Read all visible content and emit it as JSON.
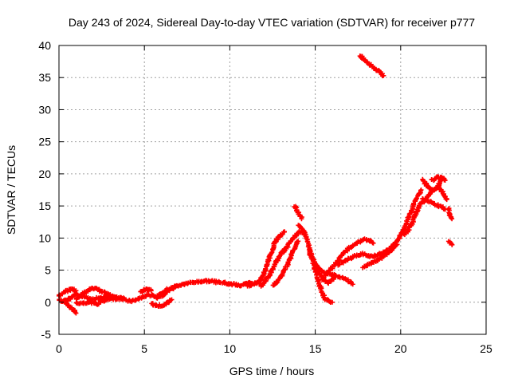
{
  "chart_data": {
    "type": "scatter",
    "title": "Day 243 of 2024, Sidereal Day-to-day VTEC variation (SDTVAR) for receiver p777",
    "xlabel": "GPS time / hours",
    "ylabel": "SDTVAR / TECUs",
    "xlim": [
      0,
      25
    ],
    "ylim": [
      -5,
      40
    ],
    "xticks": [
      0,
      5,
      10,
      15,
      20,
      25
    ],
    "yticks": [
      -5,
      0,
      5,
      10,
      15,
      20,
      25,
      30,
      35,
      40
    ],
    "grid": true,
    "marker": "plus",
    "color": "#ff0000",
    "series": [
      {
        "name": "SDTVAR",
        "segments": [
          {
            "x": [
              0.0,
              0.3,
              0.6,
              0.9,
              1.0
            ],
            "y": [
              1.0,
              1.5,
              2.0,
              2.0,
              1.8
            ]
          },
          {
            "x": [
              0.3,
              0.5,
              0.7,
              0.9,
              1.0
            ],
            "y": [
              0.2,
              -0.4,
              -0.9,
              -1.3,
              -1.7
            ]
          },
          {
            "x": [
              0.0,
              0.2,
              0.5,
              0.8,
              1.0,
              1.3,
              1.6,
              1.9,
              2.2,
              2.5,
              2.8,
              3.1,
              3.4,
              3.7,
              4.0,
              4.3,
              4.6,
              4.9,
              5.2,
              5.5,
              5.8,
              6.1,
              6.4,
              6.7,
              7.0,
              7.3,
              7.6,
              7.9,
              8.2,
              8.5,
              8.8,
              9.1,
              9.4,
              9.7,
              10.0,
              10.3,
              10.6,
              10.9,
              11.2,
              11.5,
              11.8
            ],
            "y": [
              0.5,
              0.2,
              0.3,
              0.8,
              1.2,
              1.0,
              0.8,
              0.5,
              0.6,
              0.7,
              0.8,
              0.9,
              0.7,
              0.6,
              0.3,
              0.2,
              0.5,
              0.8,
              1.2,
              1.0,
              0.6,
              1.2,
              1.8,
              2.2,
              2.6,
              2.8,
              3.0,
              3.1,
              3.2,
              3.3,
              3.3,
              3.2,
              3.1,
              3.0,
              2.8,
              2.8,
              2.6,
              2.8,
              3.0,
              2.9,
              3.0
            ]
          },
          {
            "x": [
              1.0,
              1.4,
              1.8,
              2.1,
              2.4,
              2.7,
              3.0
            ],
            "y": [
              0.6,
              1.3,
              2.0,
              2.2,
              1.8,
              1.4,
              1.2
            ]
          },
          {
            "x": [
              1.0,
              1.4,
              1.8,
              2.2,
              2.6,
              3.0,
              3.4,
              3.8
            ],
            "y": [
              0.0,
              -0.2,
              0.0,
              -0.3,
              0.2,
              0.5,
              0.6,
              0.5
            ]
          },
          {
            "x": [
              4.8,
              5.0,
              5.2,
              5.4
            ],
            "y": [
              1.6,
              1.9,
              2.1,
              1.8
            ]
          },
          {
            "x": [
              5.4,
              5.6,
              5.8,
              6.0,
              6.2,
              6.4,
              6.6
            ],
            "y": [
              -0.2,
              -0.4,
              -0.6,
              -0.5,
              -0.3,
              0.0,
              0.4
            ]
          },
          {
            "x": [
              5.8,
              6.0,
              6.3,
              6.6,
              6.9
            ],
            "y": [
              1.0,
              1.4,
              1.9,
              2.3,
              2.6
            ]
          },
          {
            "x": [
              11.0,
              11.4,
              11.8,
              12.0,
              12.2,
              12.4,
              12.6,
              12.8,
              13.0,
              13.2
            ],
            "y": [
              2.5,
              2.8,
              3.5,
              4.5,
              6.0,
              7.5,
              9.0,
              10.0,
              10.5,
              11.0
            ]
          },
          {
            "x": [
              11.8,
              12.0,
              12.2,
              12.4,
              12.6,
              12.8,
              13.0,
              13.2,
              13.4,
              13.6,
              13.8,
              14.0,
              14.2,
              14.4
            ],
            "y": [
              2.5,
              3.0,
              3.8,
              4.6,
              5.6,
              6.6,
              7.5,
              8.2,
              8.8,
              9.6,
              10.2,
              10.8,
              11.0,
              10.8
            ]
          },
          {
            "x": [
              12.5,
              12.8,
              13.1,
              13.4,
              13.7,
              14.0
            ],
            "y": [
              2.5,
              3.2,
              4.5,
              6.0,
              8.0,
              9.5
            ]
          },
          {
            "x": [
              13.8,
              13.9,
              14.0,
              14.1,
              14.2
            ],
            "y": [
              15.0,
              14.6,
              14.0,
              13.5,
              13.0
            ]
          },
          {
            "x": [
              14.0,
              14.2,
              14.4,
              14.6,
              14.8,
              15.0,
              15.2,
              15.4,
              15.6,
              15.8,
              16.0
            ],
            "y": [
              12.0,
              11.5,
              10.5,
              9.0,
              7.0,
              5.0,
              3.0,
              1.5,
              0.5,
              0.2,
              0.0
            ]
          },
          {
            "x": [
              14.6,
              14.8,
              15.0,
              15.2,
              15.4,
              15.6,
              15.8,
              16.0,
              16.2
            ],
            "y": [
              8.0,
              7.0,
              6.0,
              4.8,
              3.8,
              3.2,
              3.0,
              3.5,
              4.2
            ]
          },
          {
            "x": [
              15.0,
              15.2,
              15.4,
              15.6,
              15.8,
              16.0,
              16.3,
              16.6,
              16.9,
              17.2
            ],
            "y": [
              6.0,
              5.3,
              4.8,
              4.6,
              4.5,
              4.3,
              4.0,
              3.8,
              3.4,
              2.8
            ]
          },
          {
            "x": [
              15.4,
              15.8,
              16.2,
              16.6,
              17.0,
              17.4,
              17.8,
              18.0,
              18.2,
              18.4
            ],
            "y": [
              3.5,
              4.8,
              6.0,
              7.5,
              8.5,
              9.2,
              9.7,
              9.8,
              9.6,
              9.2
            ]
          },
          {
            "x": [
              16.2,
              16.6,
              17.0,
              17.4,
              17.8,
              18.2,
              18.6,
              19.0,
              19.4,
              19.8,
              20.0
            ],
            "y": [
              5.8,
              6.2,
              6.8,
              7.3,
              7.5,
              7.2,
              7.3,
              7.8,
              8.5,
              9.5,
              10.5
            ]
          },
          {
            "x": [
              17.8,
              18.2,
              18.6,
              19.0,
              19.4,
              19.8
            ],
            "y": [
              5.5,
              6.0,
              6.5,
              7.2,
              8.0,
              9.0
            ]
          },
          {
            "x": [
              17.6,
              17.9,
              18.2,
              18.5,
              18.8,
              19.0
            ],
            "y": [
              38.5,
              37.7,
              37.0,
              36.4,
              35.8,
              35.3
            ]
          },
          {
            "x": [
              20.0,
              20.2,
              20.4,
              20.6,
              20.8,
              21.0,
              21.2
            ],
            "y": [
              10.5,
              11.5,
              12.8,
              14.0,
              15.5,
              16.5,
              17.5
            ]
          },
          {
            "x": [
              20.2,
              20.4,
              20.6,
              20.8,
              21.0,
              21.2
            ],
            "y": [
              10.5,
              11.0,
              12.0,
              13.2,
              14.5,
              15.5
            ]
          },
          {
            "x": [
              21.3,
              21.6,
              21.9,
              22.2,
              22.4,
              22.6
            ],
            "y": [
              19.0,
              18.0,
              17.5,
              18.0,
              19.5,
              19.0
            ]
          },
          {
            "x": [
              21.3,
              21.6,
              21.9,
              22.2,
              22.5,
              22.7
            ],
            "y": [
              15.5,
              16.5,
              17.5,
              18.0,
              17.0,
              16.0
            ]
          },
          {
            "x": [
              21.3,
              21.6,
              22.0,
              22.4,
              22.6
            ],
            "y": [
              16.2,
              15.8,
              15.3,
              14.8,
              14.5
            ]
          },
          {
            "x": [
              21.8,
              22.0,
              22.2,
              22.4,
              22.6
            ],
            "y": [
              19.0,
              19.3,
              19.6,
              19.4,
              19.0
            ]
          },
          {
            "x": [
              22.8,
              22.9,
              23.0
            ],
            "y": [
              14.5,
              13.5,
              13.0
            ]
          },
          {
            "x": [
              22.8,
              22.9,
              23.0
            ],
            "y": [
              9.5,
              9.2,
              9.0
            ]
          }
        ]
      }
    ]
  }
}
